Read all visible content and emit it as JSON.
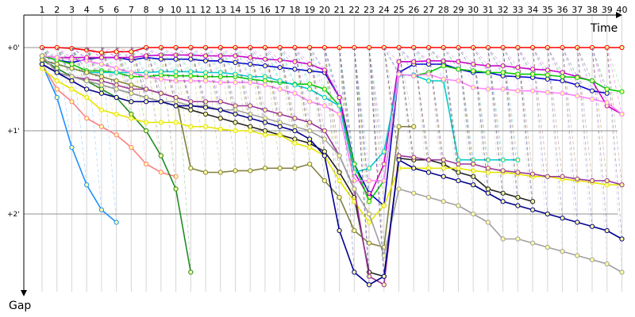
{
  "chart_data": {
    "type": "line",
    "xlabel": "Time",
    "ylabel": "Gap",
    "x_ticks": [
      "1",
      "2",
      "3",
      "4",
      "5",
      "6",
      "7",
      "8",
      "9",
      "10",
      "11",
      "12",
      "13",
      "14",
      "15",
      "16",
      "17",
      "18",
      "19",
      "20",
      "21",
      "22",
      "23",
      "24",
      "25",
      "26",
      "27",
      "28",
      "29",
      "30",
      "31",
      "32",
      "33",
      "34",
      "35",
      "36",
      "37",
      "38",
      "39",
      "40"
    ],
    "y_ticks": [
      "+0'",
      "+1'",
      "+2'"
    ],
    "grid": true,
    "series": [
      {
        "color": "#ff0000",
        "values": [
          0,
          0,
          0.01,
          0.03,
          0.06,
          0.05,
          0.05,
          0,
          0,
          0,
          0,
          0,
          0,
          0,
          0,
          0,
          0,
          0,
          0,
          0,
          0,
          0,
          0,
          0,
          0,
          0,
          0,
          0,
          0,
          0,
          0,
          0,
          0,
          0,
          0,
          0,
          0,
          0,
          0,
          0
        ]
      },
      {
        "color": "#0000cc",
        "values": [
          0.1,
          0.15,
          0.18,
          0.14,
          0.12,
          0.12,
          0.15,
          0.12,
          0.14,
          0.14,
          0.14,
          0.16,
          0.16,
          0.18,
          0.2,
          0.22,
          0.24,
          0.26,
          0.28,
          0.3,
          0.6,
          1.4,
          1.75,
          1.9,
          0.3,
          0.2,
          0.2,
          0.2,
          0.26,
          0.3,
          0.3,
          0.34,
          0.35,
          0.36,
          0.38,
          0.4,
          0.45,
          0.52,
          0.55,
          null
        ]
      },
      {
        "color": "#cc00cc",
        "values": [
          0.1,
          0.12,
          0.12,
          0.12,
          0.12,
          0.12,
          0.12,
          0.1,
          0.09,
          0.09,
          0.09,
          0.1,
          0.1,
          0.1,
          0.12,
          0.14,
          0.15,
          0.17,
          0.2,
          0.27,
          0.6,
          1.5,
          1.8,
          1.4,
          0.17,
          0.17,
          0.16,
          0.16,
          0.17,
          0.2,
          0.22,
          0.22,
          0.24,
          0.26,
          0.27,
          0.3,
          0.35,
          0.4,
          0.7,
          0.8
        ]
      },
      {
        "color": "#00cc00",
        "values": [
          0.1,
          0.15,
          0.2,
          0.28,
          0.28,
          0.3,
          0.35,
          0.35,
          0.33,
          0.34,
          0.34,
          0.35,
          0.35,
          0.35,
          0.38,
          0.4,
          0.42,
          0.44,
          0.44,
          0.5,
          0.7,
          1.4,
          1.85,
          1.6,
          0.32,
          0.34,
          0.3,
          0.22,
          0.26,
          0.28,
          0.3,
          0.3,
          0.32,
          0.32,
          0.33,
          0.35,
          0.36,
          0.4,
          0.5,
          0.53
        ]
      },
      {
        "color": "#00cccc",
        "values": [
          0.15,
          0.2,
          0.25,
          0.3,
          0.3,
          0.3,
          0.3,
          0.3,
          0.29,
          0.29,
          0.29,
          0.3,
          0.3,
          0.32,
          0.35,
          0.35,
          0.4,
          0.45,
          0.5,
          0.6,
          0.7,
          1.5,
          1.45,
          1.25,
          0.33,
          0.33,
          0.4,
          0.4,
          1.35,
          1.35,
          1.35,
          1.35,
          1.35,
          null,
          null,
          null,
          null,
          null,
          null,
          null
        ]
      },
      {
        "color": "#ff8080",
        "values": [
          0.2,
          0.5,
          0.65,
          0.85,
          0.95,
          1.05,
          1.2,
          1.4,
          1.5,
          1.55,
          null,
          null,
          null,
          null,
          null,
          null,
          null,
          null,
          null,
          null,
          null,
          null,
          null,
          null,
          null,
          null,
          null,
          null,
          null,
          null,
          null,
          null,
          null,
          null,
          null,
          null,
          null,
          null,
          null,
          null
        ]
      },
      {
        "color": "#ff80ff",
        "values": [
          0.1,
          0.12,
          0.14,
          0.16,
          0.2,
          0.25,
          0.3,
          0.35,
          0.38,
          0.4,
          0.4,
          0.4,
          0.42,
          0.42,
          0.42,
          0.45,
          0.5,
          0.55,
          0.65,
          0.7,
          0.8,
          1.6,
          1.6,
          1.6,
          0.32,
          0.34,
          0.32,
          0.38,
          0.4,
          0.48,
          0.5,
          0.5,
          0.52,
          0.52,
          0.54,
          0.55,
          0.58,
          0.62,
          0.66,
          0.8
        ]
      },
      {
        "color": "#228b22",
        "values": [
          0.15,
          0.25,
          0.35,
          0.4,
          0.5,
          0.6,
          0.8,
          1.0,
          1.3,
          1.7,
          2.7,
          null,
          null,
          null,
          null,
          null,
          null,
          null,
          null,
          null,
          null,
          null,
          null,
          null,
          null,
          null,
          null,
          null,
          null,
          null,
          null,
          null,
          null,
          null,
          null,
          null,
          null,
          null,
          null,
          null
        ]
      },
      {
        "color": "#1e90ff",
        "values": [
          0.2,
          0.6,
          1.2,
          1.65,
          1.95,
          2.1,
          null,
          null,
          null,
          null,
          null,
          null,
          null,
          null,
          null,
          null,
          null,
          null,
          null,
          null,
          null,
          null,
          null,
          null,
          null,
          null,
          null,
          null,
          null,
          null,
          null,
          null,
          null,
          null,
          null,
          null,
          null,
          null,
          null,
          null
        ]
      },
      {
        "color": "#222222",
        "values": [
          0.2,
          0.3,
          0.35,
          0.4,
          0.45,
          0.5,
          0.55,
          0.6,
          0.65,
          0.7,
          0.75,
          0.8,
          0.85,
          0.9,
          0.95,
          1.0,
          1.05,
          1.1,
          1.15,
          1.25,
          1.5,
          1.8,
          2.7,
          2.75,
          1.33,
          1.35,
          1.35,
          1.4,
          1.5,
          1.55,
          1.7,
          1.75,
          1.8,
          1.85,
          null,
          null,
          null,
          null,
          null,
          null
        ]
      },
      {
        "color": "#808040",
        "values": [
          0.15,
          0.2,
          0.25,
          0.3,
          0.35,
          0.4,
          0.45,
          0.5,
          0.55,
          0.6,
          1.45,
          1.5,
          1.5,
          1.48,
          1.48,
          1.45,
          1.45,
          1.45,
          1.4,
          1.6,
          1.8,
          2.2,
          2.35,
          2.4,
          0.95,
          0.95,
          null,
          null,
          null,
          null,
          null,
          null,
          null,
          null,
          null,
          null,
          null,
          null,
          null,
          null
        ]
      },
      {
        "color": "#e6e600",
        "values": [
          0.25,
          0.4,
          0.5,
          0.6,
          0.75,
          0.8,
          0.85,
          0.9,
          0.9,
          0.9,
          0.95,
          0.95,
          0.98,
          1.0,
          1.0,
          1.05,
          1.05,
          1.15,
          1.2,
          1.3,
          1.6,
          1.85,
          2.1,
          1.9,
          1.45,
          1.45,
          1.45,
          1.45,
          1.45,
          1.48,
          1.5,
          1.5,
          1.52,
          1.55,
          1.55,
          1.58,
          1.6,
          1.62,
          1.65,
          1.65
        ]
      },
      {
        "color": "#993399",
        "values": [
          0.1,
          0.3,
          0.35,
          0.38,
          0.4,
          0.45,
          0.5,
          0.5,
          0.55,
          0.6,
          0.65,
          0.65,
          0.65,
          0.7,
          0.7,
          0.75,
          0.8,
          0.85,
          0.9,
          1.0,
          1.3,
          1.7,
          2.75,
          2.85,
          1.3,
          1.32,
          1.35,
          1.35,
          1.4,
          1.4,
          1.45,
          1.48,
          1.5,
          1.52,
          1.55,
          1.55,
          1.58,
          1.6,
          1.6,
          1.65
        ]
      },
      {
        "color": "#a0a0a0",
        "values": [
          0.1,
          0.3,
          0.35,
          0.4,
          0.45,
          0.5,
          0.55,
          0.6,
          0.65,
          0.65,
          0.7,
          0.7,
          0.75,
          0.75,
          0.8,
          0.85,
          0.9,
          0.95,
          1.0,
          1.1,
          1.3,
          1.7,
          2.0,
          2.5,
          1.7,
          1.75,
          1.8,
          1.85,
          1.9,
          2.0,
          2.1,
          2.3,
          2.3,
          2.35,
          2.4,
          2.45,
          2.5,
          2.55,
          2.6,
          2.7
        ]
      },
      {
        "color": "#00008b",
        "values": [
          0.2,
          0.3,
          0.4,
          0.5,
          0.55,
          0.6,
          0.65,
          0.65,
          0.65,
          0.7,
          0.7,
          0.72,
          0.75,
          0.8,
          0.85,
          0.9,
          0.95,
          1.0,
          1.1,
          1.3,
          2.2,
          2.7,
          2.85,
          2.75,
          1.35,
          1.45,
          1.5,
          1.55,
          1.6,
          1.65,
          1.75,
          1.85,
          1.9,
          1.95,
          2.0,
          2.05,
          2.1,
          2.15,
          2.2,
          2.3
        ]
      }
    ]
  }
}
